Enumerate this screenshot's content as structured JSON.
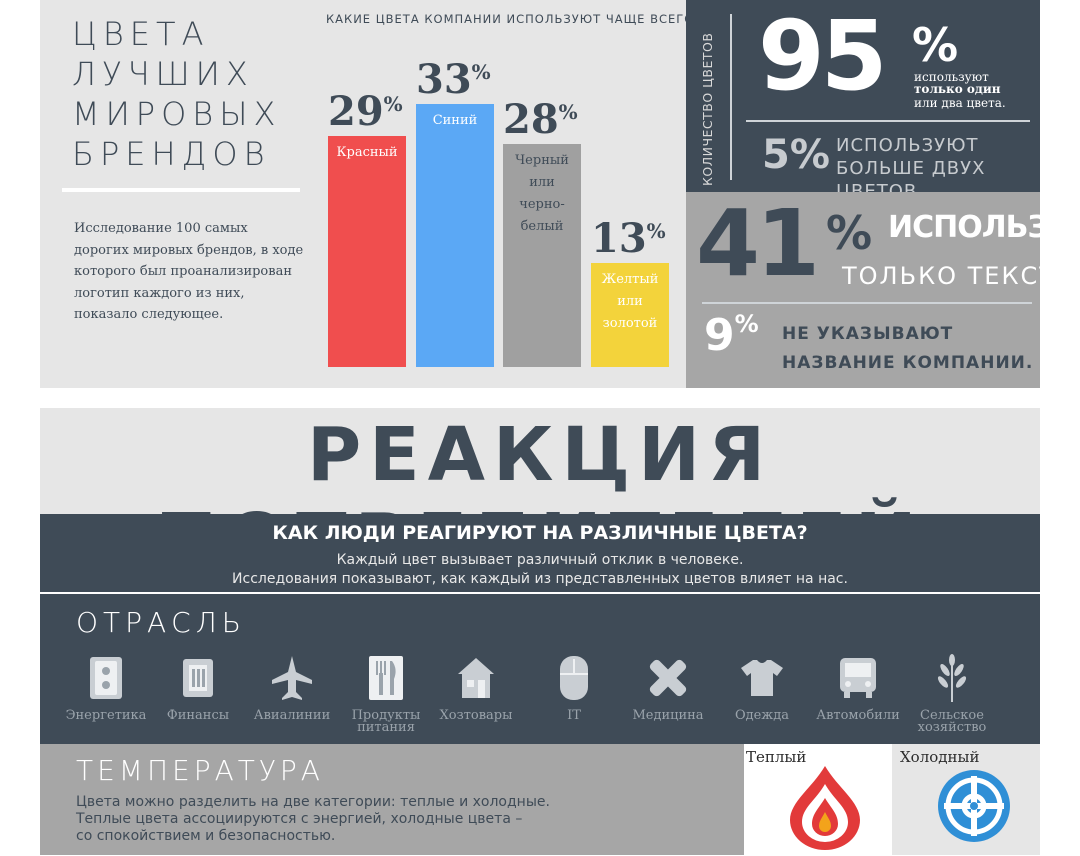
{
  "brand": {
    "title_lines": [
      "ЦВЕТА",
      "ЛУЧШИХ",
      "МИРОВЫХ",
      "БРЕНДОВ"
    ],
    "study_text": "Исследование 100 самых дорогих мировых брендов, в ходе которого был проанализирован логотип каждого из них, показало следующее."
  },
  "chart_data": {
    "type": "bar",
    "title": "КАКИЕ ЦВЕТА КОМПАНИИ ИСПОЛЬЗУЮТ ЧАЩЕ ВСЕГО?",
    "categories": [
      "Красный",
      "Синий",
      "Черный или черно-белый",
      "Желтый или золотой"
    ],
    "category_lines": [
      [
        "Красный"
      ],
      [
        "Синий"
      ],
      [
        "Черный",
        "или",
        "черно-",
        "белый"
      ],
      [
        "Желтый",
        "или",
        "золотой"
      ]
    ],
    "values": [
      29,
      33,
      28,
      13
    ],
    "value_unit": "%",
    "colors": [
      "#f04e4e",
      "#5ba8f5",
      "#a0a0a0",
      "#f3d33b"
    ],
    "label_colors": [
      "#ffffff",
      "#ffffff",
      "#3f4b57",
      "#ffffff"
    ],
    "ylim": [
      0,
      33
    ]
  },
  "stats": {
    "count_label": "КОЛИЧЕСТВО ЦВЕТОВ",
    "p95": {
      "number": "95",
      "unit": "%",
      "line1": "используют",
      "line2": "только один",
      "line3": "или два цвета."
    },
    "p5": {
      "number": "5%",
      "text": "ИСПОЛЬЗУЮТ БОЛЬШЕ ДВУХ ЦВЕТОВ."
    },
    "p41": {
      "number": "41",
      "unit": "%",
      "line1": "ИСПОЛЬЗУЮТ",
      "line2": "ТОЛЬКО ТЕКСТ."
    },
    "p9": {
      "number": "9",
      "unit": "%",
      "text": "НЕ УКАЗЫВАЮТ НАЗВАНИЕ КОМПАНИИ."
    }
  },
  "consumers": {
    "title": "РЕАКЦИЯ ПОТРЕБИТЕЛЕЙ",
    "question": "КАК ЛЮДИ РЕАГИРУЮТ НА РАЗЛИЧНЫЕ ЦВЕТА?",
    "sub1": "Каждый цвет вызывает различный отклик в человеке.",
    "sub2": "Исследования показывают, как каждый из представленных цветов влияет на нас.",
    "industry_heading": "ОТРАСЛЬ",
    "industries": [
      {
        "label": "Энергетика",
        "icon": "socket-icon"
      },
      {
        "label": "Финансы",
        "icon": "wallet-icon"
      },
      {
        "label": "Авиалинии",
        "icon": "airplane-icon"
      },
      {
        "label": "Продукты питания",
        "icon": "cutlery-icon"
      },
      {
        "label": "Хозтовары",
        "icon": "house-icon"
      },
      {
        "label": "IT",
        "icon": "mouse-icon"
      },
      {
        "label": "Медицина",
        "icon": "bandage-icon"
      },
      {
        "label": "Одежда",
        "icon": "tshirt-icon"
      },
      {
        "label": "Автомобили",
        "icon": "bus-icon"
      },
      {
        "label": "Сельское хозяйство",
        "icon": "wheat-icon"
      }
    ]
  },
  "temperature": {
    "heading": "ТЕМПЕРАТУРА",
    "line1": "Цвета можно разделить на две категории: теплые и холодные.",
    "line2": "Теплые цвета ассоциируются с энергией, холодные цвета –",
    "line3": "со спокойствием и безопасностью.",
    "warm_label": "Теплый",
    "cold_label": "Холодный"
  },
  "colors": {
    "dark": "#3f4b57",
    "light_gray": "#e6e6e6",
    "mid_gray": "#a6a6a6",
    "warm_red": "#e23a3a",
    "cold_blue": "#2f8fd6"
  }
}
